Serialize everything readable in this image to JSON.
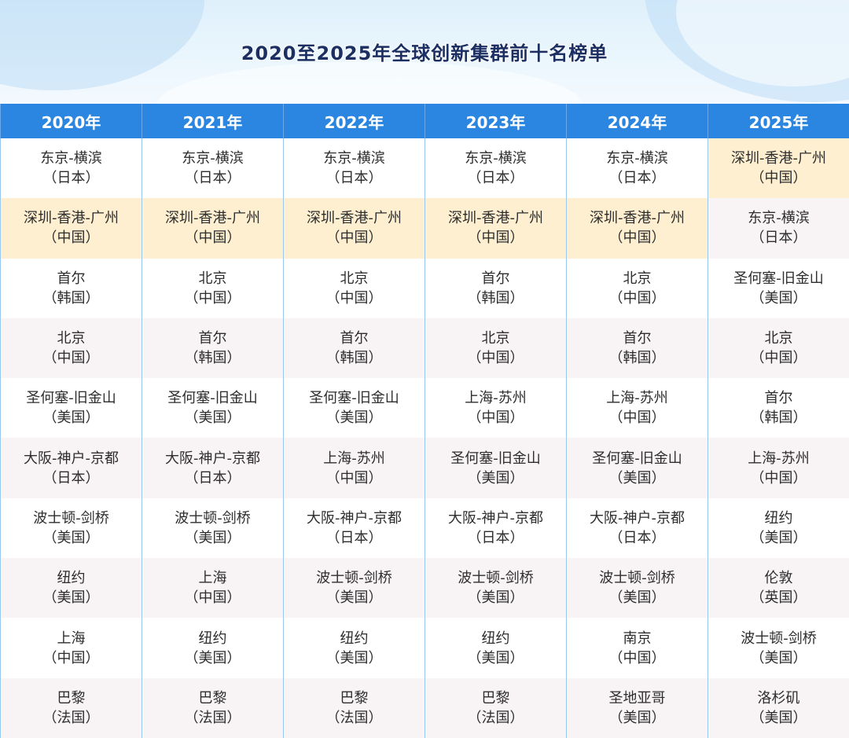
{
  "title": "2020至2025年全球创新集群前十名榜单",
  "colors": {
    "header_bg": "#2b86e2",
    "title_text": "#1b2f63",
    "highlight_bg": "#fdefd0",
    "alt_row_bg": "#f8f4f6",
    "grid_line": "#99c7ee"
  },
  "highlight_cluster": "深圳-香港-广州",
  "table": {
    "headers": [
      "2020年",
      "2021年",
      "2022年",
      "2023年",
      "2024年",
      "2025年"
    ],
    "rows": [
      [
        {
          "city": "东京-横滨",
          "country": "（日本）"
        },
        {
          "city": "东京-横滨",
          "country": "（日本）"
        },
        {
          "city": "东京-横滨",
          "country": "（日本）"
        },
        {
          "city": "东京-横滨",
          "country": "（日本）"
        },
        {
          "city": "东京-横滨",
          "country": "（日本）"
        },
        {
          "city": "深圳-香港-广州",
          "country": "（中国）"
        }
      ],
      [
        {
          "city": "深圳-香港-广州",
          "country": "（中国）"
        },
        {
          "city": "深圳-香港-广州",
          "country": "（中国）"
        },
        {
          "city": "深圳-香港-广州",
          "country": "（中国）"
        },
        {
          "city": "深圳-香港-广州",
          "country": "（中国）"
        },
        {
          "city": "深圳-香港-广州",
          "country": "（中国）"
        },
        {
          "city": "东京-横滨",
          "country": "（日本）"
        }
      ],
      [
        {
          "city": "首尔",
          "country": "（韩国）"
        },
        {
          "city": "北京",
          "country": "（中国）"
        },
        {
          "city": "北京",
          "country": "（中国）"
        },
        {
          "city": "首尔",
          "country": "（韩国）"
        },
        {
          "city": "北京",
          "country": "（中国）"
        },
        {
          "city": "圣何塞-旧金山",
          "country": "（美国）"
        }
      ],
      [
        {
          "city": "北京",
          "country": "（中国）"
        },
        {
          "city": "首尔",
          "country": "（韩国）"
        },
        {
          "city": "首尔",
          "country": "（韩国）"
        },
        {
          "city": "北京",
          "country": "（中国）"
        },
        {
          "city": "首尔",
          "country": "（韩国）"
        },
        {
          "city": "北京",
          "country": "（中国）"
        }
      ],
      [
        {
          "city": "圣何塞-旧金山",
          "country": "（美国）"
        },
        {
          "city": "圣何塞-旧金山",
          "country": "（美国）"
        },
        {
          "city": "圣何塞-旧金山",
          "country": "（美国）"
        },
        {
          "city": "上海-苏州",
          "country": "（中国）"
        },
        {
          "city": "上海-苏州",
          "country": "（中国）"
        },
        {
          "city": "首尔",
          "country": "（韩国）"
        }
      ],
      [
        {
          "city": "大阪-神户-京都",
          "country": "（日本）"
        },
        {
          "city": "大阪-神户-京都",
          "country": "（日本）"
        },
        {
          "city": "上海-苏州",
          "country": "（中国）"
        },
        {
          "city": "圣何塞-旧金山",
          "country": "（美国）"
        },
        {
          "city": "圣何塞-旧金山",
          "country": "（美国）"
        },
        {
          "city": "上海-苏州",
          "country": "（中国）"
        }
      ],
      [
        {
          "city": "波士顿-剑桥",
          "country": "（美国）"
        },
        {
          "city": "波士顿-剑桥",
          "country": "（美国）"
        },
        {
          "city": "大阪-神户-京都",
          "country": "（日本）"
        },
        {
          "city": "大阪-神户-京都",
          "country": "（日本）"
        },
        {
          "city": "大阪-神户-京都",
          "country": "（日本）"
        },
        {
          "city": "纽约",
          "country": "（美国）"
        }
      ],
      [
        {
          "city": "纽约",
          "country": "（美国）"
        },
        {
          "city": "上海",
          "country": "（中国）"
        },
        {
          "city": "波士顿-剑桥",
          "country": "（美国）"
        },
        {
          "city": "波士顿-剑桥",
          "country": "（美国）"
        },
        {
          "city": "波士顿-剑桥",
          "country": "（美国）"
        },
        {
          "city": "伦敦",
          "country": "（英国）"
        }
      ],
      [
        {
          "city": "上海",
          "country": "（中国）"
        },
        {
          "city": "纽约",
          "country": "（美国）"
        },
        {
          "city": "纽约",
          "country": "（美国）"
        },
        {
          "city": "纽约",
          "country": "（美国）"
        },
        {
          "city": "南京",
          "country": "（中国）"
        },
        {
          "city": "波士顿-剑桥",
          "country": "（美国）"
        }
      ],
      [
        {
          "city": "巴黎",
          "country": "（法国）"
        },
        {
          "city": "巴黎",
          "country": "（法国）"
        },
        {
          "city": "巴黎",
          "country": "（法国）"
        },
        {
          "city": "巴黎",
          "country": "（法国）"
        },
        {
          "city": "圣地亚哥",
          "country": "（美国）"
        },
        {
          "city": "洛杉矶",
          "country": "（美国）"
        }
      ]
    ]
  }
}
